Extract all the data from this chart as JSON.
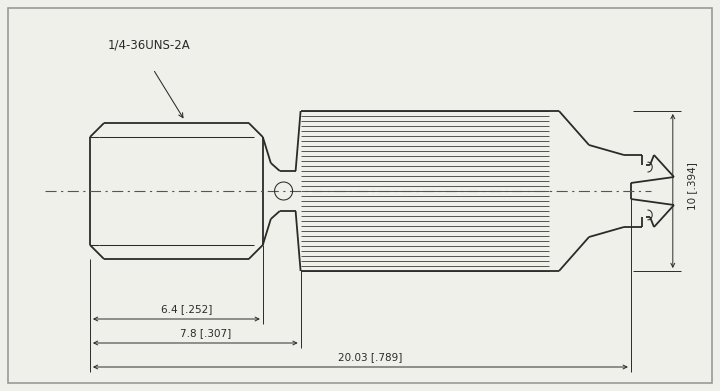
{
  "bg_color": "#f0f0eb",
  "line_color": "#2a2a2a",
  "lw": 1.3,
  "lw_thin": 0.75,
  "lw_dim": 0.7,
  "title_label": "1/4-36UNS-2A",
  "dim1_label": "6.4 [.252]",
  "dim2_label": "7.8 [.307]",
  "dim3_label": "20.03 [.789]",
  "dim4_label": "10 [.394]",
  "fig_width": 7.2,
  "fig_height": 3.91,
  "border_color": "#999999"
}
